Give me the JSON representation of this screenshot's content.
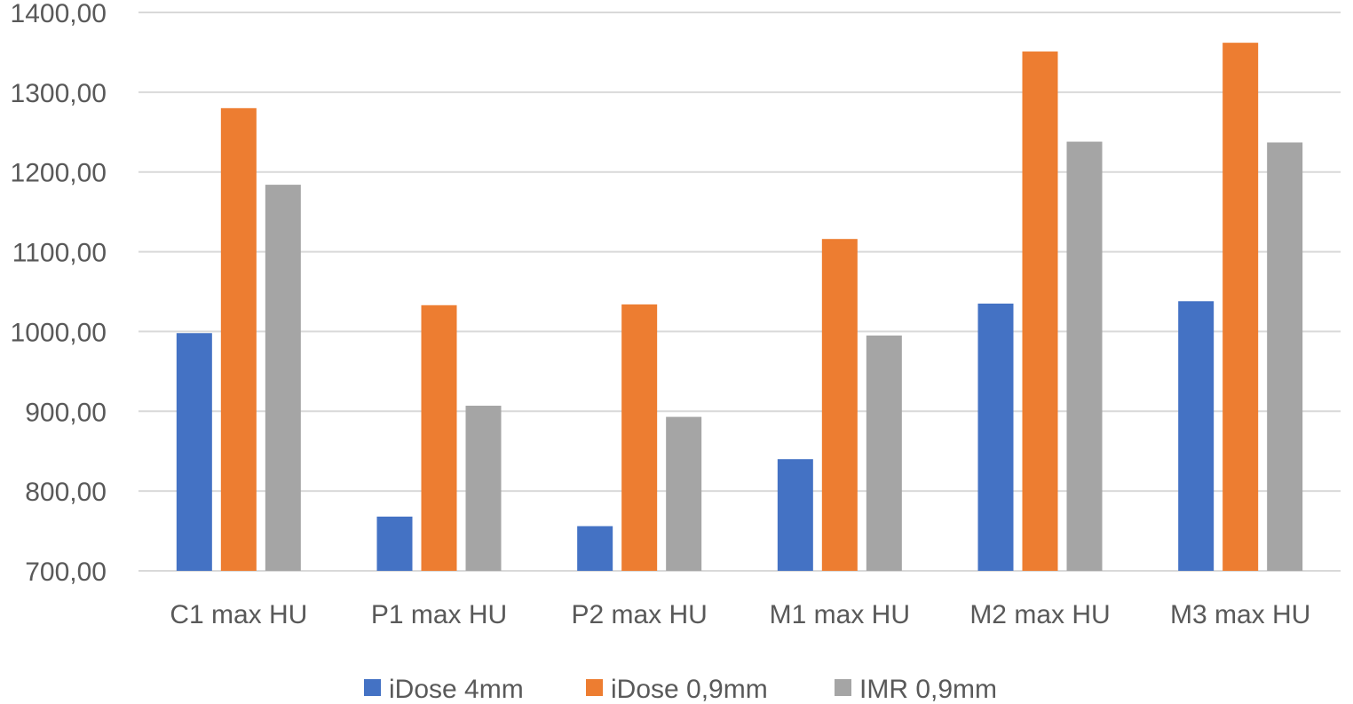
{
  "chart_data": {
    "type": "bar",
    "title": "",
    "xlabel": "",
    "ylabel": "",
    "categories": [
      "C1 max HU",
      "P1 max HU",
      "P2 max HU",
      "M1 max HU",
      "M2 max HU",
      "M3 max HU"
    ],
    "series": [
      {
        "name": "iDose 4mm",
        "color": "#4472C4",
        "values": [
          998,
          768,
          756,
          840,
          1035,
          1038
        ]
      },
      {
        "name": "iDose 0,9mm",
        "color": "#ED7D31",
        "values": [
          1280,
          1033,
          1034,
          1116,
          1351,
          1362
        ]
      },
      {
        "name": "IMR 0,9mm",
        "color": "#A5A5A5",
        "values": [
          1184,
          907,
          893,
          995,
          1238,
          1237
        ]
      }
    ],
    "ylim": [
      700,
      1400
    ],
    "yticks": [
      700,
      800,
      900,
      1000,
      1100,
      1200,
      1300,
      1400
    ],
    "ytick_labels": [
      "700,00",
      "800,00",
      "900,00",
      "1000,00",
      "1100,00",
      "1200,00",
      "1300,00",
      "1400,00"
    ],
    "grid": true,
    "gridline_color": "#D9D9D9",
    "legend_position": "bottom"
  }
}
